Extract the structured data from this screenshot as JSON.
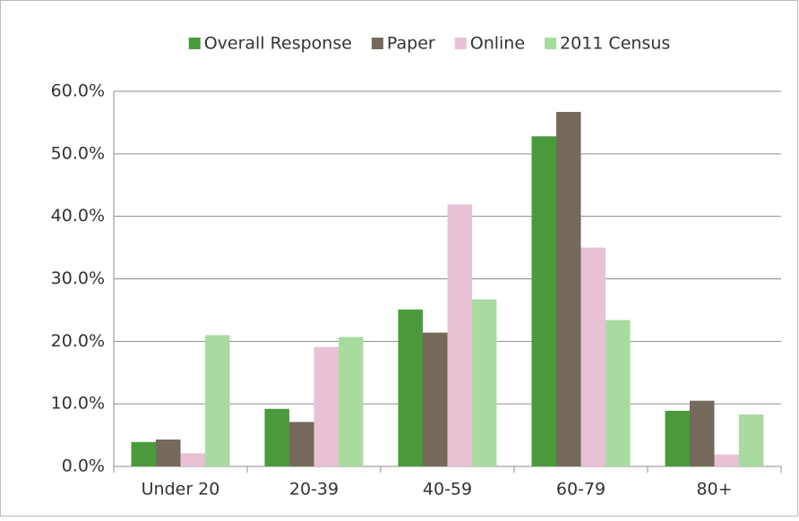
{
  "chart_data": {
    "type": "bar",
    "categories": [
      "Under 20",
      "20-39",
      "40-59",
      "60-79",
      "80+"
    ],
    "series": [
      {
        "name": "Overall Response",
        "color": "#4a9a3c",
        "values": [
          3.9,
          9.2,
          25.1,
          52.8,
          8.9
        ]
      },
      {
        "name": "Paper",
        "color": "#74695a",
        "values": [
          4.3,
          7.1,
          21.4,
          56.7,
          10.5
        ]
      },
      {
        "name": "Online",
        "color": "#e8c1d5",
        "values": [
          2.1,
          19.1,
          41.9,
          35.0,
          1.9
        ]
      },
      {
        "name": "2011 Census",
        "color": "#a9dba0",
        "values": [
          21.0,
          20.7,
          26.7,
          23.4,
          8.3
        ]
      }
    ],
    "ylim": [
      0,
      60
    ],
    "yticks": [
      {
        "value": 0,
        "label": "0.0%"
      },
      {
        "value": 10,
        "label": "10.0%"
      },
      {
        "value": 20,
        "label": "20.0%"
      },
      {
        "value": 30,
        "label": "30.0%"
      },
      {
        "value": 40,
        "label": "40.0%"
      },
      {
        "value": 50,
        "label": "50.0%"
      },
      {
        "value": 60,
        "label": "60.0%"
      }
    ],
    "grid": true,
    "legend": "top"
  }
}
